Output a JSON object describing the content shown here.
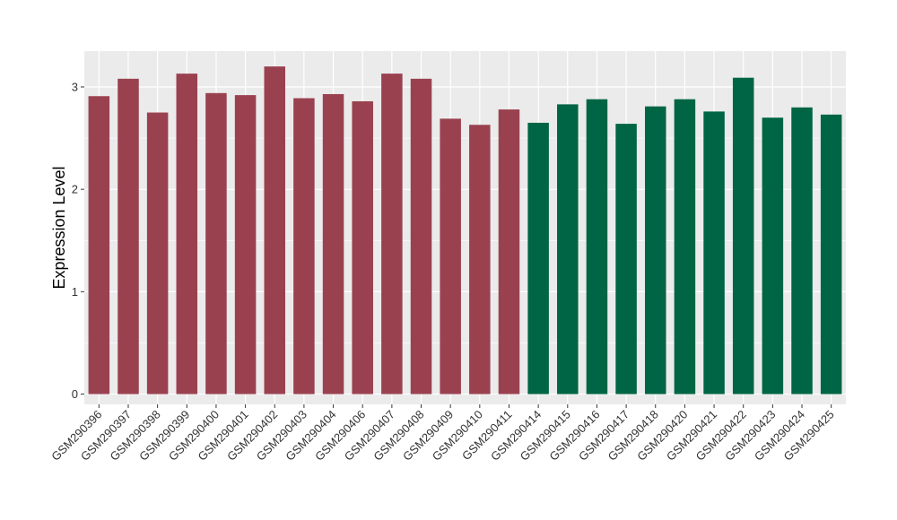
{
  "chart_data": {
    "type": "bar",
    "title": "",
    "xlabel": "",
    "ylabel": "Expression Level",
    "ylim": [
      -0.1,
      3.35
    ],
    "yticks": [
      0,
      1,
      2,
      3
    ],
    "grid": true,
    "legend": "none",
    "categories": [
      "GSM290396",
      "GSM290397",
      "GSM290398",
      "GSM290399",
      "GSM290400",
      "GSM290401",
      "GSM290402",
      "GSM290403",
      "GSM290404",
      "GSM290406",
      "GSM290407",
      "GSM290408",
      "GSM290409",
      "GSM290410",
      "GSM290411",
      "GSM290414",
      "GSM290415",
      "GSM290416",
      "GSM290417",
      "GSM290418",
      "GSM290420",
      "GSM290421",
      "GSM290422",
      "GSM290423",
      "GSM290424",
      "GSM290425"
    ],
    "values": [
      2.91,
      3.08,
      2.75,
      3.13,
      2.94,
      2.92,
      3.2,
      2.89,
      2.93,
      2.86,
      3.13,
      3.08,
      2.69,
      2.63,
      2.78,
      2.65,
      2.83,
      2.88,
      2.64,
      2.81,
      2.88,
      2.76,
      3.09,
      2.7,
      2.8,
      2.73
    ],
    "bar_colors": [
      "#9a4150",
      "#9a4150",
      "#9a4150",
      "#9a4150",
      "#9a4150",
      "#9a4150",
      "#9a4150",
      "#9a4150",
      "#9a4150",
      "#9a4150",
      "#9a4150",
      "#9a4150",
      "#9a4150",
      "#9a4150",
      "#9a4150",
      "#006544",
      "#006544",
      "#006544",
      "#006544",
      "#006544",
      "#006544",
      "#006544",
      "#006544",
      "#006544",
      "#006544",
      "#006544"
    ],
    "panel_background": "#ebebeb",
    "grid_color": "#ffffff"
  }
}
